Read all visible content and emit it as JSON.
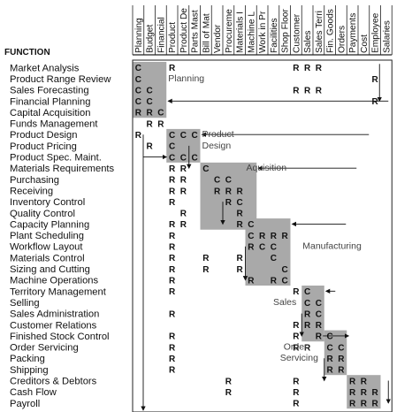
{
  "header": {
    "function_label": "FUNCTION"
  },
  "columns": [
    "Planning",
    "Budget",
    "Financial",
    "Product",
    "Product De",
    "Parts Mast",
    "Bill of Mat",
    "Vendor",
    "Procureme",
    "Materials I",
    "Machine L",
    "Work in Pr",
    "Facilities",
    "Shop Floor",
    "Customer",
    "Sales",
    "Sales Terri",
    "Fin. Goods",
    "Orders",
    "Payments",
    "Cost",
    "Employee",
    "Salaries"
  ],
  "functions": [
    "Market Analysis",
    "Product Range Review",
    "Sales Forecasting",
    "Financial Planning",
    "Capital Acquisition",
    "Funds Management",
    "Product Design",
    "Product Pricing",
    "Product Spec. Maint.",
    "Materials Requirements",
    "Purchasing",
    "Receiving",
    "Inventory Control",
    "Quality Control",
    "Capacity Planning",
    "Plant Scheduling",
    "Workflow Layout",
    "Materials Control",
    "Sizing and Cutting",
    "Machine Operations",
    "Territory Management",
    "Selling",
    "Sales Administration",
    "Customer Relations",
    "Finished Stock Control",
    "Order Servicing",
    "Packing",
    "Shipping",
    "Creditors & Debtors",
    "Cash Flow",
    "Payroll"
  ],
  "cluster_labels": [
    "Planning",
    "Product",
    "Design",
    "Aquisition",
    "Manufacturing",
    "Sales",
    "Order",
    "Servicing"
  ],
  "matrix": [
    [
      "C",
      0,
      0
    ],
    [
      "R",
      0,
      3
    ],
    [
      "R",
      0,
      14
    ],
    [
      "R",
      0,
      15
    ],
    [
      "R",
      0,
      16
    ],
    [
      "C",
      1,
      0
    ],
    [
      "R",
      1,
      21
    ],
    [
      "C",
      2,
      0
    ],
    [
      "C",
      2,
      1
    ],
    [
      "R",
      2,
      14
    ],
    [
      "R",
      2,
      15
    ],
    [
      "R",
      2,
      16
    ],
    [
      "C",
      3,
      0
    ],
    [
      "C",
      3,
      1
    ],
    [
      "R",
      3,
      21
    ],
    [
      "R",
      4,
      0
    ],
    [
      "R",
      4,
      1
    ],
    [
      "C",
      4,
      2
    ],
    [
      "R",
      5,
      1
    ],
    [
      "R",
      5,
      2
    ],
    [
      "R",
      6,
      0
    ],
    [
      "C",
      6,
      3
    ],
    [
      "C",
      6,
      4
    ],
    [
      "C",
      6,
      5
    ],
    [
      "R",
      7,
      1
    ],
    [
      "C",
      7,
      3
    ],
    [
      "C",
      8,
      3
    ],
    [
      "C",
      8,
      4
    ],
    [
      "C",
      8,
      5
    ],
    [
      "R",
      9,
      3
    ],
    [
      "R",
      9,
      4
    ],
    [
      "C",
      9,
      6
    ],
    [
      "R",
      10,
      3
    ],
    [
      "R",
      10,
      4
    ],
    [
      "C",
      10,
      7
    ],
    [
      "C",
      10,
      8
    ],
    [
      "R",
      11,
      3
    ],
    [
      "R",
      11,
      4
    ],
    [
      "R",
      11,
      7
    ],
    [
      "R",
      11,
      8
    ],
    [
      "R",
      11,
      9
    ],
    [
      "R",
      12,
      3
    ],
    [
      "R",
      12,
      8
    ],
    [
      "C",
      12,
      9
    ],
    [
      "R",
      13,
      4
    ],
    [
      "R",
      13,
      9
    ],
    [
      "R",
      14,
      3
    ],
    [
      "R",
      14,
      4
    ],
    [
      "R",
      14,
      9
    ],
    [
      "C",
      14,
      10
    ],
    [
      "R",
      15,
      3
    ],
    [
      "C",
      15,
      10
    ],
    [
      "R",
      15,
      11
    ],
    [
      "R",
      15,
      12
    ],
    [
      "R",
      15,
      13
    ],
    [
      "R",
      16,
      3
    ],
    [
      "R",
      16,
      10
    ],
    [
      "C",
      16,
      11
    ],
    [
      "C",
      16,
      12
    ],
    [
      "R",
      17,
      3
    ],
    [
      "R",
      17,
      6
    ],
    [
      "R",
      17,
      9
    ],
    [
      "C",
      17,
      12
    ],
    [
      "R",
      18,
      3
    ],
    [
      "R",
      18,
      6
    ],
    [
      "R",
      18,
      9
    ],
    [
      "C",
      18,
      13
    ],
    [
      "R",
      19,
      3
    ],
    [
      "R",
      19,
      10
    ],
    [
      "R",
      19,
      12
    ],
    [
      "C",
      19,
      13
    ],
    [
      "R",
      20,
      3
    ],
    [
      "R",
      20,
      14
    ],
    [
      "C",
      20,
      15
    ],
    [
      "C",
      21,
      15
    ],
    [
      "C",
      21,
      16
    ],
    [
      "R",
      22,
      3
    ],
    [
      "R",
      22,
      15
    ],
    [
      "C",
      22,
      16
    ],
    [
      "R",
      23,
      14
    ],
    [
      "R",
      23,
      15
    ],
    [
      "R",
      23,
      16
    ],
    [
      "R",
      24,
      3
    ],
    [
      "R",
      24,
      14
    ],
    [
      "R",
      24,
      16
    ],
    [
      "C",
      24,
      17
    ],
    [
      "R",
      25,
      3
    ],
    [
      "R",
      25,
      14
    ],
    [
      "R",
      25,
      15
    ],
    [
      "C",
      25,
      17
    ],
    [
      "C",
      25,
      18
    ],
    [
      "R",
      26,
      3
    ],
    [
      "R",
      26,
      17
    ],
    [
      "R",
      26,
      18
    ],
    [
      "R",
      27,
      3
    ],
    [
      "R",
      27,
      17
    ],
    [
      "R",
      27,
      18
    ],
    [
      "R",
      28,
      8
    ],
    [
      "R",
      28,
      14
    ],
    [
      "R",
      28,
      19
    ],
    [
      "R",
      28,
      20
    ],
    [
      "R",
      29,
      8
    ],
    [
      "R",
      29,
      14
    ],
    [
      "R",
      29,
      19
    ],
    [
      "R",
      29,
      20
    ],
    [
      "R",
      29,
      21
    ],
    [
      "R",
      30,
      14
    ],
    [
      "R",
      30,
      19
    ],
    [
      "R",
      30,
      20
    ],
    [
      "R",
      30,
      21
    ]
  ]
}
